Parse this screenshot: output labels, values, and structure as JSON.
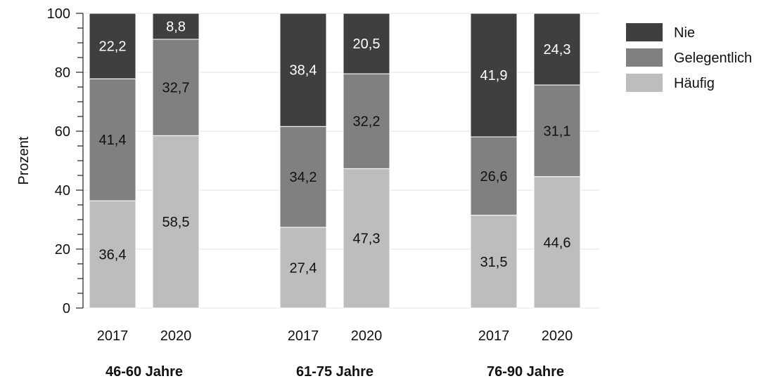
{
  "chart_data": {
    "type": "bar",
    "stacked": true,
    "ylabel": "Prozent",
    "ylim": [
      0,
      100
    ],
    "yticks": [
      0,
      20,
      40,
      60,
      80,
      100
    ],
    "grid": true,
    "legend_position": "top-right",
    "groups": [
      {
        "label": "46-60 Jahre",
        "categories": [
          "2017",
          "2020"
        ]
      },
      {
        "label": "61-75 Jahre",
        "categories": [
          "2017",
          "2020"
        ]
      },
      {
        "label": "76-90 Jahre",
        "categories": [
          "2017",
          "2020"
        ]
      }
    ],
    "series": [
      {
        "name": "Häufig",
        "color": "#bdbdbd",
        "label_color": "#111111",
        "values": [
          36.4,
          58.5,
          27.4,
          47.3,
          31.5,
          44.6
        ],
        "labels": [
          "36,4",
          "58,5",
          "27,4",
          "47,3",
          "31,5",
          "44,6"
        ]
      },
      {
        "name": "Gelegentlich",
        "color": "#808080",
        "label_color": "#111111",
        "values": [
          41.4,
          32.7,
          34.2,
          32.2,
          26.6,
          31.1
        ],
        "labels": [
          "41,4",
          "32,7",
          "34,2",
          "32,2",
          "26,6",
          "31,1"
        ]
      },
      {
        "name": "Nie",
        "color": "#3f3f3f",
        "label_color": "#ffffff",
        "values": [
          22.2,
          8.8,
          38.4,
          20.5,
          41.9,
          24.3
        ],
        "labels": [
          "22,2",
          "8,8",
          "38,4",
          "20,5",
          "41,9",
          "24,3"
        ]
      }
    ],
    "legend_order": [
      "Nie",
      "Gelegentlich",
      "Häufig"
    ]
  }
}
